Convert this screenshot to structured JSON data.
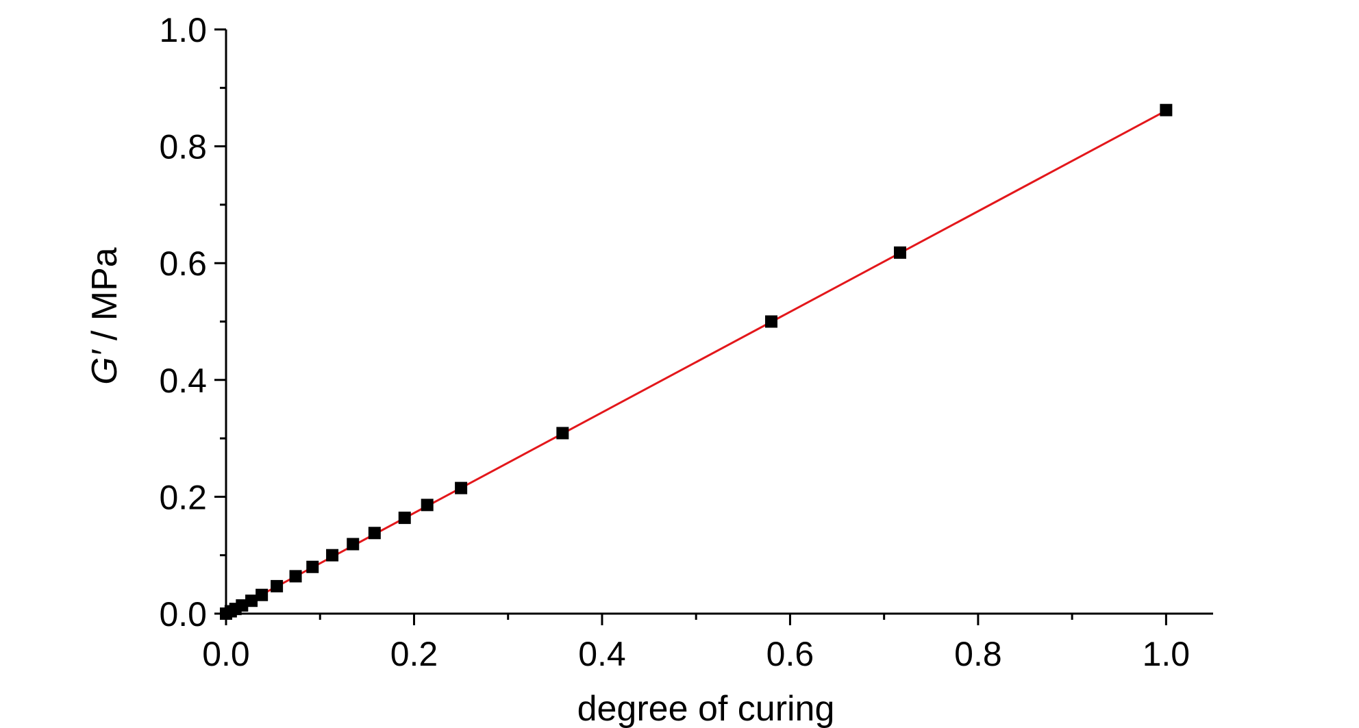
{
  "chart_data": {
    "type": "scatter",
    "title": "",
    "xlabel": "degree of curing",
    "ylabel_main": "G′",
    "ylabel_rest": " / MPa",
    "xlim": [
      0,
      1.05
    ],
    "ylim": [
      0,
      1.0
    ],
    "x_ticks": [
      0.0,
      0.2,
      0.4,
      0.6,
      0.8,
      1.0
    ],
    "x_tick_labels": [
      "0.0",
      "0.2",
      "0.4",
      "0.6",
      "0.8",
      "1.0"
    ],
    "y_ticks": [
      0.0,
      0.2,
      0.4,
      0.6,
      0.8,
      1.0
    ],
    "y_tick_labels": [
      "0.0",
      "0.2",
      "0.4",
      "0.6",
      "0.8",
      "1.0"
    ],
    "grid": false,
    "series": [
      {
        "marker": "square",
        "color": "#000000",
        "points": [
          [
            0.0,
            0.0
          ],
          [
            0.005,
            0.004
          ],
          [
            0.01,
            0.008
          ],
          [
            0.017,
            0.014
          ],
          [
            0.027,
            0.022
          ],
          [
            0.038,
            0.032
          ],
          [
            0.054,
            0.047
          ],
          [
            0.074,
            0.064
          ],
          [
            0.092,
            0.08
          ],
          [
            0.113,
            0.1
          ],
          [
            0.135,
            0.119
          ],
          [
            0.158,
            0.138
          ],
          [
            0.19,
            0.164
          ],
          [
            0.214,
            0.186
          ],
          [
            0.25,
            0.215
          ],
          [
            0.358,
            0.309
          ],
          [
            0.58,
            0.5
          ],
          [
            0.717,
            0.618
          ],
          [
            1.0,
            0.862
          ]
        ]
      }
    ],
    "fit_line": {
      "color": "#e3171b",
      "x": [
        0.0,
        1.0
      ],
      "y": [
        0.0,
        0.861
      ]
    }
  }
}
